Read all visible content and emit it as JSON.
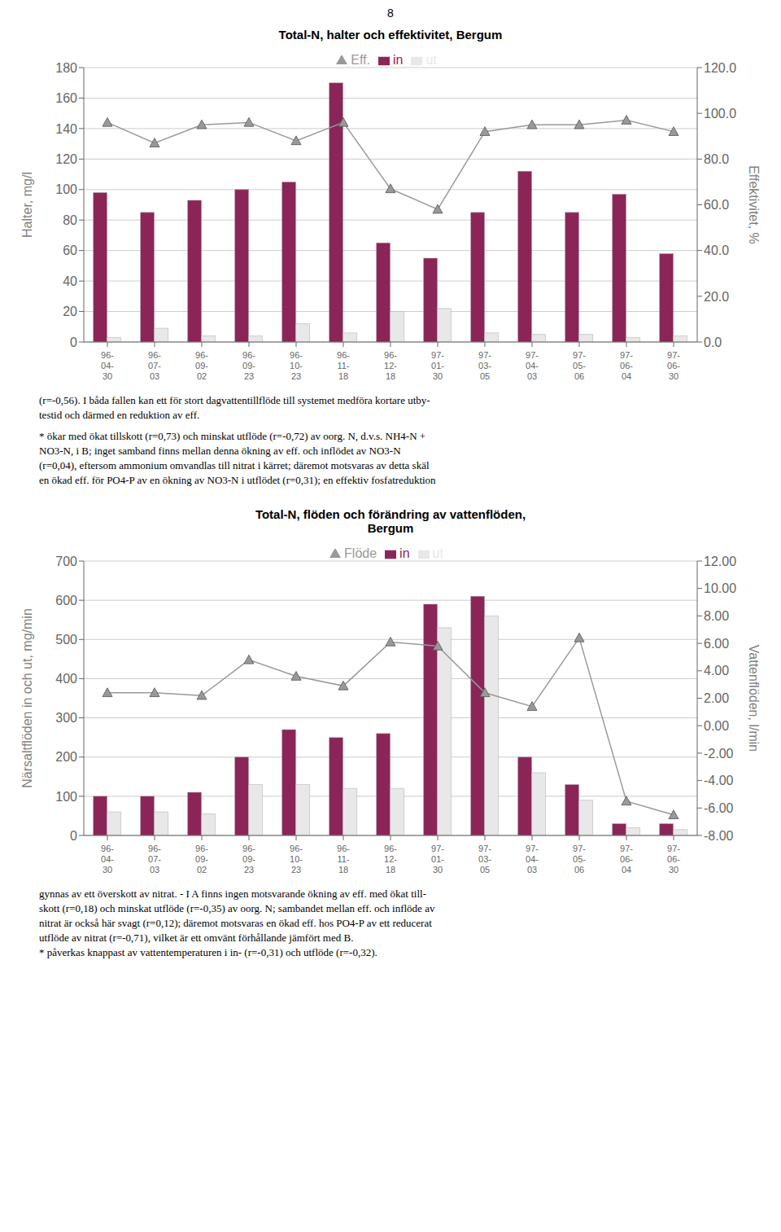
{
  "annotations": [
    "8"
  ],
  "chart_data": [
    {
      "type": "bar",
      "title": "Total-N, halter och effektivitet, Bergum",
      "categories": [
        "96-\n04-\n30",
        "96-\n07-\n03",
        "96-\n09-\n02",
        "96-\n09-\n23",
        "96-\n10-\n23",
        "96-\n11-\n18",
        "96-\n12-\n18",
        "97-\n01-\n30",
        "97-\n03-\n05",
        "97-\n04-\n03",
        "97-\n05-\n06",
        "97-\n06-\n04",
        "97-\n06-\n30"
      ],
      "series": [
        {
          "name": "in",
          "type": "bar",
          "color": "#8B2558",
          "values": [
            98,
            85,
            93,
            100,
            105,
            170,
            65,
            55,
            85,
            112,
            85,
            97,
            58
          ]
        },
        {
          "name": "ut",
          "type": "bar",
          "color": "#E8E8E8",
          "values": [
            3,
            9,
            4,
            4,
            12,
            6,
            20,
            22,
            6,
            5,
            5,
            3,
            4
          ]
        },
        {
          "name": "Eff.",
          "type": "line",
          "axis": "y2",
          "color": "#999999",
          "marker": "triangle",
          "values": [
            96,
            87,
            95,
            96,
            88,
            96,
            67,
            58,
            92,
            95,
            95,
            97,
            92
          ]
        }
      ],
      "ylabel": "Halter, mg/l",
      "y2label": "Effektivitet, %",
      "ylim": [
        0,
        180
      ],
      "yticks": [
        0,
        20,
        40,
        60,
        80,
        100,
        120,
        140,
        160,
        180
      ],
      "y2lim": [
        0,
        120
      ],
      "y2ticks": [
        {
          "value": 0,
          "label": "0.0"
        },
        {
          "value": 20,
          "label": "20.0"
        },
        {
          "value": 40,
          "label": "40.0"
        },
        {
          "value": 60,
          "label": "60.0"
        },
        {
          "value": 80,
          "label": "80.0"
        },
        {
          "value": 100,
          "label": "100.0"
        },
        {
          "value": 120,
          "label": "120.0"
        }
      ],
      "grid": true,
      "legend": "top",
      "annotations": [
        "(r=-0,56). I båda fallen kan ett för stort dagvattentillflöde till systemet medföra kortare utby-\ntestid och därmed en reduktion av eff.",
        "* ökar med ökat tillskott (r=0,73) och minskat utflöde (r=-0,72) av oorg. N, d.v.s. NH4-N +\nNO3-N, i B; inget samband finns mellan denna ökning av eff. och inflödet av NO3-N\n(r=0,04), eftersom ammonium omvandlas till nitrat i kärret; däremot motsvaras av detta skäl\nen ökad eff. för PO4-P av en ökning av NO3-N i utflödet (r=0,31); en effektiv fosfatreduktion"
      ]
    },
    {
      "type": "bar",
      "title": "Total-N, flöden och förändring av vattenflöden,\nBergum",
      "categories": [
        "96-\n04-\n30",
        "96-\n07-\n03",
        "96-\n09-\n02",
        "96-\n09-\n23",
        "96-\n10-\n23",
        "96-\n11-\n18",
        "96-\n12-\n18",
        "97-\n01-\n30",
        "97-\n03-\n05",
        "97-\n04-\n03",
        "97-\n05-\n06",
        "97-\n06-\n04",
        "97-\n06-\n30"
      ],
      "series": [
        {
          "name": "in",
          "type": "bar",
          "color": "#8B2558",
          "values": [
            100,
            100,
            110,
            200,
            270,
            250,
            260,
            590,
            610,
            200,
            130,
            30,
            30
          ]
        },
        {
          "name": "ut",
          "type": "bar",
          "color": "#E8E8E8",
          "values": [
            60,
            60,
            55,
            130,
            130,
            120,
            120,
            530,
            560,
            160,
            90,
            20,
            15
          ]
        },
        {
          "name": "Flöde",
          "type": "line",
          "axis": "y2",
          "color": "#999999",
          "marker": "triangle",
          "values": [
            2.4,
            2.4,
            2.2,
            4.8,
            3.6,
            2.9,
            6.1,
            5.8,
            2.4,
            1.4,
            6.4,
            -5.5,
            -6.5
          ]
        }
      ],
      "ylabel": "Närsaltflöden in och ut, mg/min",
      "y2label": "Vattenflöden, l/min",
      "ylim": [
        0,
        700
      ],
      "yticks": [
        0,
        100,
        200,
        300,
        400,
        500,
        600,
        700
      ],
      "y2lim": [
        -8,
        12
      ],
      "y2ticks": [
        {
          "value": -8,
          "label": "-8.00"
        },
        {
          "value": -6,
          "label": "-6.00"
        },
        {
          "value": -4,
          "label": "-4.00"
        },
        {
          "value": -2,
          "label": "-2.00"
        },
        {
          "value": 0,
          "label": "0.00"
        },
        {
          "value": 2,
          "label": "2.00"
        },
        {
          "value": 4,
          "label": "4.00"
        },
        {
          "value": 6,
          "label": "6.00"
        },
        {
          "value": 8,
          "label": "8.00"
        },
        {
          "value": 10,
          "label": "10.00"
        },
        {
          "value": 12,
          "label": "12.00"
        }
      ],
      "grid": true,
      "legend": "top",
      "annotations": [
        "gynnas av ett överskott av nitrat. - I A finns ingen motsvarande ökning av eff. med ökat till-\nskott (r=0,18) och minskat utflöde (r=-0,35) av oorg. N; sambandet mellan eff. och inflöde av\nnitrat är också här svagt (r=0,12); däremot motsvaras en ökad eff. hos PO4-P av ett reducerat\nutflöde av nitrat (r=-0,71), vilket är ett omvänt förhållande jämfört med B.\n* påverkas knappast av vattentemperaturen i in- (r=-0,31) och utflöde (r=-0,32)."
      ]
    }
  ]
}
